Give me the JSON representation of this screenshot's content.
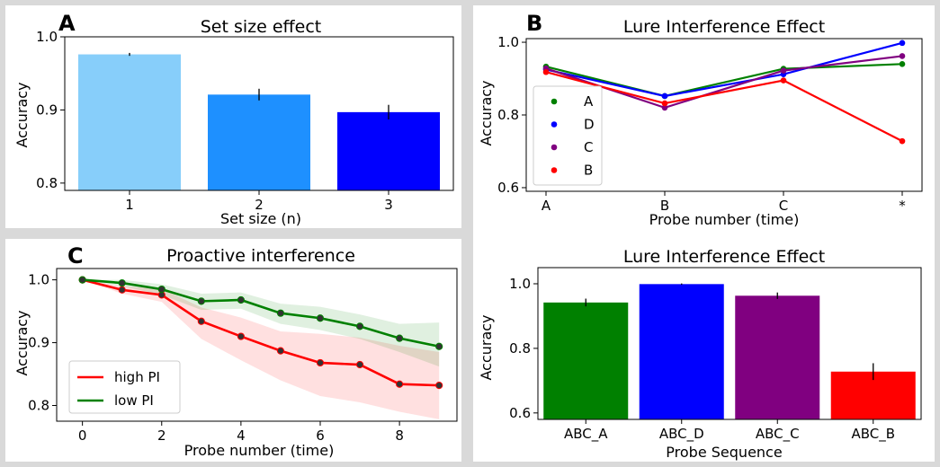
{
  "panels": [
    {
      "letter": "A",
      "chart_data": {
        "type": "bar",
        "title": "Set size effect",
        "xlabel": "Set size (n)",
        "ylabel": "Accuracy",
        "categories": [
          "1",
          "2",
          "3"
        ],
        "values": [
          0.976,
          0.921,
          0.897
        ],
        "errors": [
          0.002,
          0.008,
          0.01
        ],
        "colors": [
          "#87cefa",
          "#1e90ff",
          "#0000ff"
        ],
        "ylim": [
          0.79,
          1.0
        ],
        "yticks": [
          0.8,
          0.9,
          1.0
        ],
        "ytick_labels": [
          "0.8",
          "0.9",
          "1.0"
        ]
      }
    },
    {
      "letter": "B",
      "chart_data": {
        "type": "line",
        "title": "Lure Interference Effect",
        "xlabel": "Probe number (time)",
        "ylabel": "Accuracy",
        "categories": [
          "A",
          "B",
          "C",
          "*"
        ],
        "ylim": [
          0.59,
          1.01
        ],
        "yticks": [
          0.6,
          0.8,
          1.0
        ],
        "ytick_labels": [
          "0.6",
          "0.8",
          "1.0"
        ],
        "legend_position": "center-left",
        "series": [
          {
            "name": "A",
            "color": "#008000",
            "values": [
              0.933,
              0.852,
              0.927,
              0.94
            ]
          },
          {
            "name": "D",
            "color": "#0000ff",
            "values": [
              0.925,
              0.852,
              0.912,
              0.998
            ]
          },
          {
            "name": "C",
            "color": "#800080",
            "values": [
              0.928,
              0.82,
              0.922,
              0.962
            ]
          },
          {
            "name": "B",
            "color": "#ff0000",
            "values": [
              0.918,
              0.832,
              0.895,
              0.728
            ]
          }
        ]
      }
    },
    {
      "letter": "C",
      "chart_data": {
        "type": "line",
        "title": "Proactive interference",
        "xlabel": "Probe number (time)",
        "ylabel": "Accuracy",
        "x": [
          0,
          1,
          2,
          3,
          4,
          5,
          6,
          7,
          8,
          9
        ],
        "xlim": [
          -0.65,
          9.45
        ],
        "xticks": [
          0,
          2,
          4,
          6,
          8
        ],
        "xtick_labels": [
          "0",
          "2",
          "4",
          "6",
          "8"
        ],
        "ylim": [
          0.775,
          1.018
        ],
        "yticks": [
          0.8,
          0.9,
          1.0
        ],
        "ytick_labels": [
          "0.8",
          "0.9",
          "1.0"
        ],
        "legend_position": "lower-left",
        "series": [
          {
            "name": "high PI",
            "color": "#ff0000",
            "values": [
              1.0,
              0.984,
              0.976,
              0.934,
              0.91,
              0.887,
              0.868,
              0.865,
              0.834,
              0.832
            ],
            "lower": [
              1.0,
              0.978,
              0.965,
              0.906,
              0.872,
              0.84,
              0.815,
              0.805,
              0.79,
              0.778
            ],
            "upper": [
              1.0,
              0.99,
              0.986,
              0.956,
              0.94,
              0.918,
              0.914,
              0.908,
              0.895,
              0.885
            ]
          },
          {
            "name": "low PI",
            "color": "#008000",
            "values": [
              1.0,
              0.995,
              0.985,
              0.966,
              0.968,
              0.947,
              0.939,
              0.926,
              0.907,
              0.894
            ],
            "lower": [
              1.0,
              0.99,
              0.976,
              0.952,
              0.954,
              0.93,
              0.92,
              0.906,
              0.885,
              0.862
            ],
            "upper": [
              1.0,
              1.0,
              0.993,
              0.978,
              0.98,
              0.962,
              0.957,
              0.945,
              0.93,
              0.932
            ]
          }
        ]
      }
    },
    {
      "letter": "",
      "chart_data": {
        "type": "bar",
        "title": "Lure Interference Effect",
        "xlabel": "Probe Sequence",
        "ylabel": "Accuracy",
        "categories": [
          "ABC_A",
          "ABC_D",
          "ABC_C",
          "ABC_B"
        ],
        "values": [
          0.942,
          0.999,
          0.963,
          0.728
        ],
        "errors": [
          0.012,
          0.002,
          0.01,
          0.026
        ],
        "colors": [
          "#008000",
          "#0000ff",
          "#800080",
          "#ff0000"
        ],
        "ylim": [
          0.58,
          1.05
        ],
        "yticks": [
          0.6,
          0.8,
          1.0
        ],
        "ytick_labels": [
          "0.6",
          "0.8",
          "1.0"
        ]
      }
    }
  ]
}
